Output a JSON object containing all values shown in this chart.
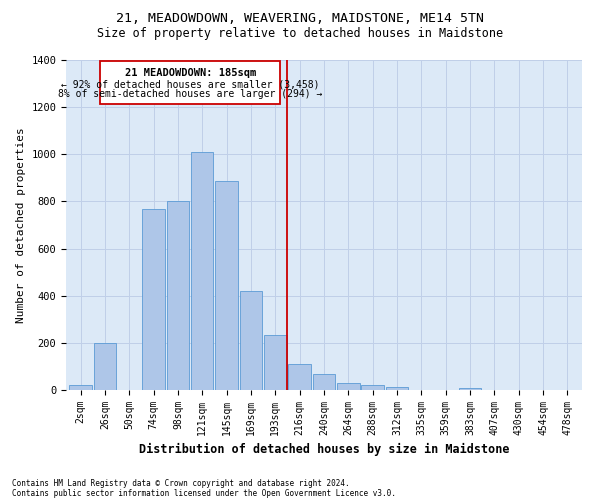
{
  "title": "21, MEADOWDOWN, WEAVERING, MAIDSTONE, ME14 5TN",
  "subtitle": "Size of property relative to detached houses in Maidstone",
  "xlabel": "Distribution of detached houses by size in Maidstone",
  "ylabel": "Number of detached properties",
  "footnote1": "Contains HM Land Registry data © Crown copyright and database right 2024.",
  "footnote2": "Contains public sector information licensed under the Open Government Licence v3.0.",
  "annotation_title": "21 MEADOWDOWN: 185sqm",
  "annotation_line1": "← 92% of detached houses are smaller (3,458)",
  "annotation_line2": "8% of semi-detached houses are larger (294) →",
  "bar_color": "#aec6e8",
  "bar_edge_color": "#5b9bd5",
  "vline_color": "#cc0000",
  "background_color": "#dce9f7",
  "categories": [
    "2sqm",
    "26sqm",
    "50sqm",
    "74sqm",
    "98sqm",
    "121sqm",
    "145sqm",
    "169sqm",
    "193sqm",
    "216sqm",
    "240sqm",
    "264sqm",
    "288sqm",
    "312sqm",
    "335sqm",
    "359sqm",
    "383sqm",
    "407sqm",
    "430sqm",
    "454sqm",
    "478sqm"
  ],
  "values": [
    22,
    200,
    0,
    770,
    800,
    1010,
    885,
    422,
    235,
    110,
    70,
    28,
    22,
    12,
    0,
    0,
    10,
    0,
    0,
    0,
    0
  ],
  "ylim": [
    0,
    1400
  ],
  "yticks": [
    0,
    200,
    400,
    600,
    800,
    1000,
    1200,
    1400
  ],
  "vline_x_index": 8.5,
  "grid_color": "#c0cfe8",
  "title_fontsize": 9.5,
  "subtitle_fontsize": 8.5,
  "ylabel_fontsize": 8,
  "xlabel_fontsize": 8.5,
  "tick_fontsize": 7,
  "annot_fontsize_title": 7.5,
  "annot_fontsize_body": 7,
  "footnote_fontsize": 5.5
}
